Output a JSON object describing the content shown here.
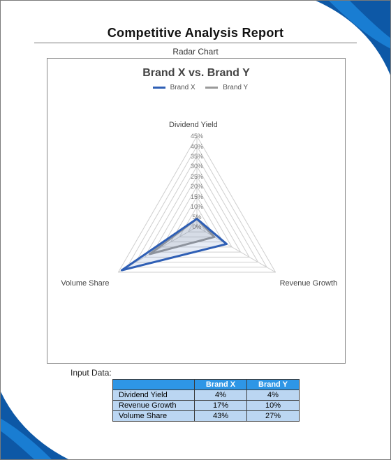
{
  "report": {
    "title": "Competitive Analysis Report",
    "subheading": "Radar Chart",
    "title_fontsize": 18,
    "title_color": "#111111",
    "underline_color": "#777777"
  },
  "corners": {
    "color_main": "#0d58a6",
    "color_stripe": "#1a7fd4"
  },
  "chart": {
    "type": "radar",
    "title": "Brand X vs. Brand Y",
    "title_fontsize": 16,
    "title_color": "#444444",
    "box_border": "#888888",
    "background": "#ffffff",
    "grid_color": "#cfcfcf",
    "grid_width": 1,
    "axis_label_color": "#444444",
    "tick_label_color": "#777777",
    "max_value": 45,
    "tick_step": 5,
    "ticks": [
      "0%",
      "5%",
      "10%",
      "15%",
      "20%",
      "25%",
      "30%",
      "35%",
      "40%",
      "45%"
    ],
    "axes": [
      {
        "key": "dividend_yield",
        "label": "Dividend Yield",
        "angle_deg": -90
      },
      {
        "key": "revenue_growth",
        "label": "Revenue Growth",
        "angle_deg": 30
      },
      {
        "key": "volume_share",
        "label": "Volume Share",
        "angle_deg": 150
      }
    ],
    "series": [
      {
        "name": "Brand X",
        "color": "#2f5fb5",
        "fill": "rgba(47,95,181,0.12)",
        "line_width": 3,
        "values": {
          "dividend_yield": 4,
          "revenue_growth": 17,
          "volume_share": 43
        }
      },
      {
        "name": "Brand Y",
        "color": "#9a9a9a",
        "fill": "rgba(154,154,154,0.18)",
        "line_width": 3,
        "values": {
          "dividend_yield": 4,
          "revenue_growth": 10,
          "volume_share": 27
        }
      }
    ],
    "legend": {
      "items": [
        {
          "label": "Brand X",
          "color": "#2f5fb5"
        },
        {
          "label": "Brand Y",
          "color": "#9a9a9a"
        }
      ],
      "fontsize": 10
    }
  },
  "input_table": {
    "caption": "Input Data:",
    "header_bg": "#2e96e6",
    "header_text": "#ffffff",
    "cell_bg": "#bbd6f2",
    "border_color": "#3a3a3a",
    "columns": [
      "",
      "Brand X",
      "Brand Y"
    ],
    "rows": [
      [
        "Dividend Yield",
        "4%",
        "4%"
      ],
      [
        "Revenue Growth",
        "17%",
        "10%"
      ],
      [
        "Volume Share",
        "43%",
        "27%"
      ]
    ]
  }
}
